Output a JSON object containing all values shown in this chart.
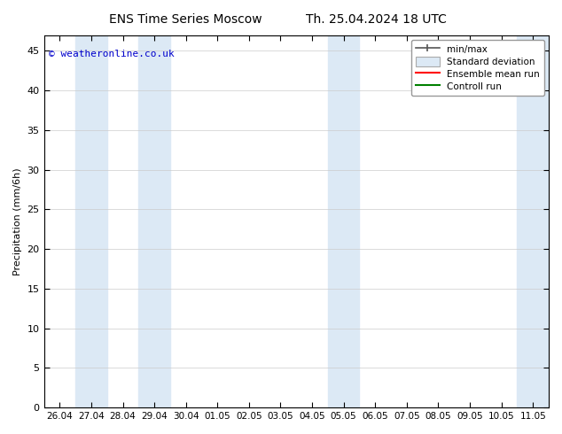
{
  "title": "ENS Time Series Moscow",
  "title2": "Th. 25.04.2024 18 UTC",
  "ylabel": "Precipitation (mm/6h)",
  "ylim": [
    0,
    47
  ],
  "yticks": [
    0,
    5,
    10,
    15,
    20,
    25,
    30,
    35,
    40,
    45
  ],
  "xlabel": "",
  "bg_color": "#ffffff",
  "plot_bg_color": "#ffffff",
  "copyright_text": "© weatheronline.co.uk",
  "copyright_color": "#0000cc",
  "legend_items": [
    {
      "label": "min/max",
      "color": "#555555",
      "type": "minmax"
    },
    {
      "label": "Standard deviation",
      "color": "#b8d0e8",
      "type": "box"
    },
    {
      "label": "Ensemble mean run",
      "color": "#ff0000",
      "type": "line"
    },
    {
      "label": "Controll run",
      "color": "#008000",
      "type": "line"
    }
  ],
  "x_tick_labels": [
    "26.04",
    "27.04",
    "28.04",
    "29.04",
    "30.04",
    "01.05",
    "02.05",
    "03.05",
    "04.05",
    "05.05",
    "06.05",
    "07.05",
    "08.05",
    "09.05",
    "10.05",
    "11.05"
  ],
  "x_tick_positions": [
    0,
    1,
    2,
    3,
    4,
    5,
    6,
    7,
    8,
    9,
    10,
    11,
    12,
    13,
    14,
    15
  ],
  "shaded_bands": [
    [
      0.5,
      1.5
    ],
    [
      2.5,
      3.5
    ],
    [
      8.5,
      9.5
    ],
    [
      14.5,
      15.5
    ]
  ],
  "shade_color": "#dce9f5",
  "grid_color": "#cccccc",
  "tick_color": "#000000",
  "spine_color": "#000000"
}
